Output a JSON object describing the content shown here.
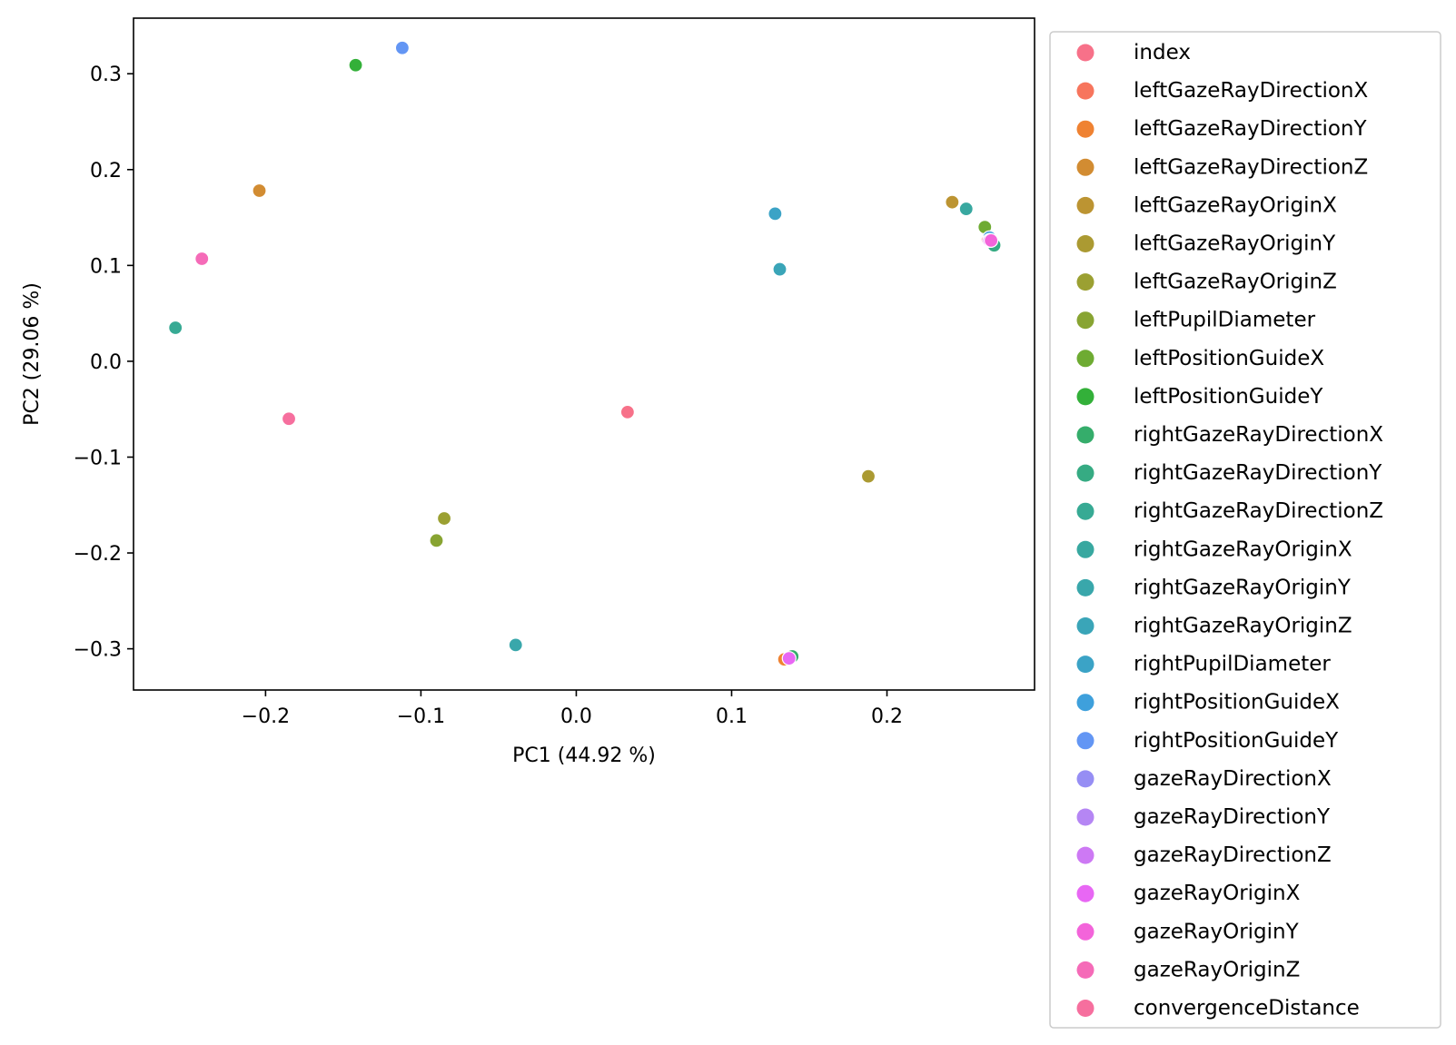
{
  "chart_data": {
    "type": "scatter",
    "xlabel": "PC1 (44.92 %)",
    "ylabel": "PC2 (29.06 %)",
    "xlim": [
      -0.285,
      0.295
    ],
    "ylim": [
      -0.343,
      0.358
    ],
    "xticks": [
      -0.2,
      -0.1,
      0.0,
      0.1,
      0.2
    ],
    "xtick_labels": [
      "−0.2",
      "−0.1",
      "0.0",
      "0.1",
      "0.2"
    ],
    "yticks": [
      0.3,
      0.2,
      0.1,
      0.0,
      -0.1,
      -0.2,
      -0.3
    ],
    "ytick_labels": [
      "0.3",
      "0.2",
      "0.1",
      "0.0",
      "−0.1",
      "−0.2",
      "−0.3"
    ],
    "grid": false,
    "legend_position": "outside-right",
    "series": [
      {
        "name": "index",
        "color": "#f77189",
        "x": 0.265,
        "y": 0.127
      },
      {
        "name": "leftGazeRayDirectionX",
        "color": "#f7755d",
        "x": 0.135,
        "y": -0.311
      },
      {
        "name": "leftGazeRayDirectionY",
        "color": "#ef8232",
        "x": 0.134,
        "y": -0.311
      },
      {
        "name": "leftGazeRayDirectionZ",
        "color": "#d28c32",
        "x": -0.204,
        "y": 0.178
      },
      {
        "name": "leftGazeRayOriginX",
        "color": "#bc9432",
        "x": 0.242,
        "y": 0.166
      },
      {
        "name": "leftGazeRayOriginY",
        "color": "#ab9a32",
        "x": 0.188,
        "y": -0.12
      },
      {
        "name": "leftGazeRayOriginZ",
        "color": "#9ba032",
        "x": -0.085,
        "y": -0.164
      },
      {
        "name": "leftPupilDiameter",
        "color": "#88a432",
        "x": -0.09,
        "y": -0.187
      },
      {
        "name": "leftPositionGuideX",
        "color": "#6eab32",
        "x": 0.263,
        "y": 0.14
      },
      {
        "name": "leftPositionGuideY",
        "color": "#33b039",
        "x": -0.142,
        "y": 0.309
      },
      {
        "name": "rightGazeRayDirectionX",
        "color": "#35ad6b",
        "x": 0.139,
        "y": -0.308
      },
      {
        "name": "rightGazeRayDirectionY",
        "color": "#36ab83",
        "x": 0.269,
        "y": 0.121
      },
      {
        "name": "rightGazeRayDirectionZ",
        "color": "#37aa94",
        "x": -0.258,
        "y": 0.035
      },
      {
        "name": "rightGazeRayOriginX",
        "color": "#38a8a0",
        "x": 0.251,
        "y": 0.159
      },
      {
        "name": "rightGazeRayOriginY",
        "color": "#39a7ab",
        "x": -0.039,
        "y": -0.296
      },
      {
        "name": "rightGazeRayOriginZ",
        "color": "#3aa5b8",
        "x": 0.131,
        "y": 0.096
      },
      {
        "name": "rightPupilDiameter",
        "color": "#3ba3c6",
        "x": 0.128,
        "y": 0.154
      },
      {
        "name": "rightPositionGuideX",
        "color": "#3ea0dc",
        "x": 0.266,
        "y": 0.129
      },
      {
        "name": "rightPositionGuideY",
        "color": "#6396f4",
        "x": -0.112,
        "y": 0.327
      },
      {
        "name": "gazeRayDirectionX",
        "color": "#968ef4",
        "x": 0.266,
        "y": 0.126
      },
      {
        "name": "gazeRayDirectionY",
        "color": "#b586f4",
        "x": 0.266,
        "y": 0.126
      },
      {
        "name": "gazeRayDirectionZ",
        "color": "#cd79f4",
        "x": 0.266,
        "y": 0.126
      },
      {
        "name": "gazeRayOriginX",
        "color": "#e867f4",
        "x": 0.137,
        "y": -0.31
      },
      {
        "name": "gazeRayOriginY",
        "color": "#f364da",
        "x": 0.267,
        "y": 0.126
      },
      {
        "name": "gazeRayOriginZ",
        "color": "#f56bb8",
        "x": -0.241,
        "y": 0.107
      },
      {
        "name": "convergenceDistance",
        "color": "#f66f9e",
        "x": -0.185,
        "y": -0.06
      },
      {
        "name": "",
        "color": "#f77189",
        "x": 0.033,
        "y": -0.053
      }
    ]
  }
}
